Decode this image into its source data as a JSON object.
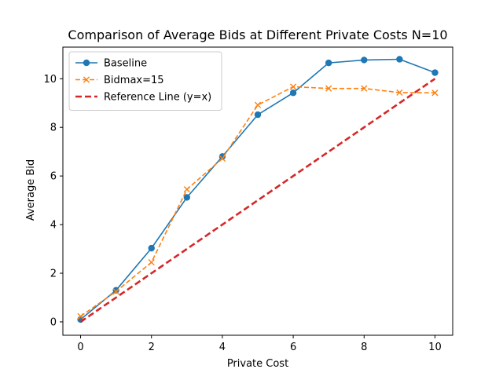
{
  "chart_data": {
    "type": "line",
    "title": "Comparison of Average Bids at Different Private Costs N=10",
    "xlabel": "Private Cost",
    "ylabel": "Average Bid",
    "xlim": [
      -0.5,
      10.5
    ],
    "ylim": [
      -0.55,
      11.3
    ],
    "xticks": [
      0,
      2,
      4,
      6,
      8,
      10
    ],
    "yticks": [
      0,
      2,
      4,
      6,
      8,
      10
    ],
    "grid": false,
    "legend_position": "top-left",
    "series": [
      {
        "name": "Baseline",
        "color": "#1f77b4",
        "line_style": "solid",
        "marker": "circle",
        "x": [
          0,
          1,
          2,
          3,
          4,
          5,
          6,
          7,
          8,
          9,
          10
        ],
        "y": [
          0.1,
          1.3,
          3.03,
          5.12,
          6.8,
          8.52,
          9.42,
          10.65,
          10.77,
          10.8,
          10.25
        ]
      },
      {
        "name": "Bidmax=15",
        "color": "#ff7f0e",
        "line_style": "dashed",
        "marker": "x",
        "x": [
          0,
          1,
          2,
          3,
          4,
          5,
          6,
          7,
          8,
          9,
          10
        ],
        "y": [
          0.23,
          1.25,
          2.45,
          5.45,
          6.72,
          8.92,
          9.67,
          9.6,
          9.6,
          9.43,
          9.42
        ]
      },
      {
        "name": "Reference Line (y=x)",
        "color": "#d62728",
        "line_style": "dashed-bold",
        "marker": "none",
        "x": [
          0,
          10
        ],
        "y": [
          0,
          10
        ]
      }
    ]
  }
}
